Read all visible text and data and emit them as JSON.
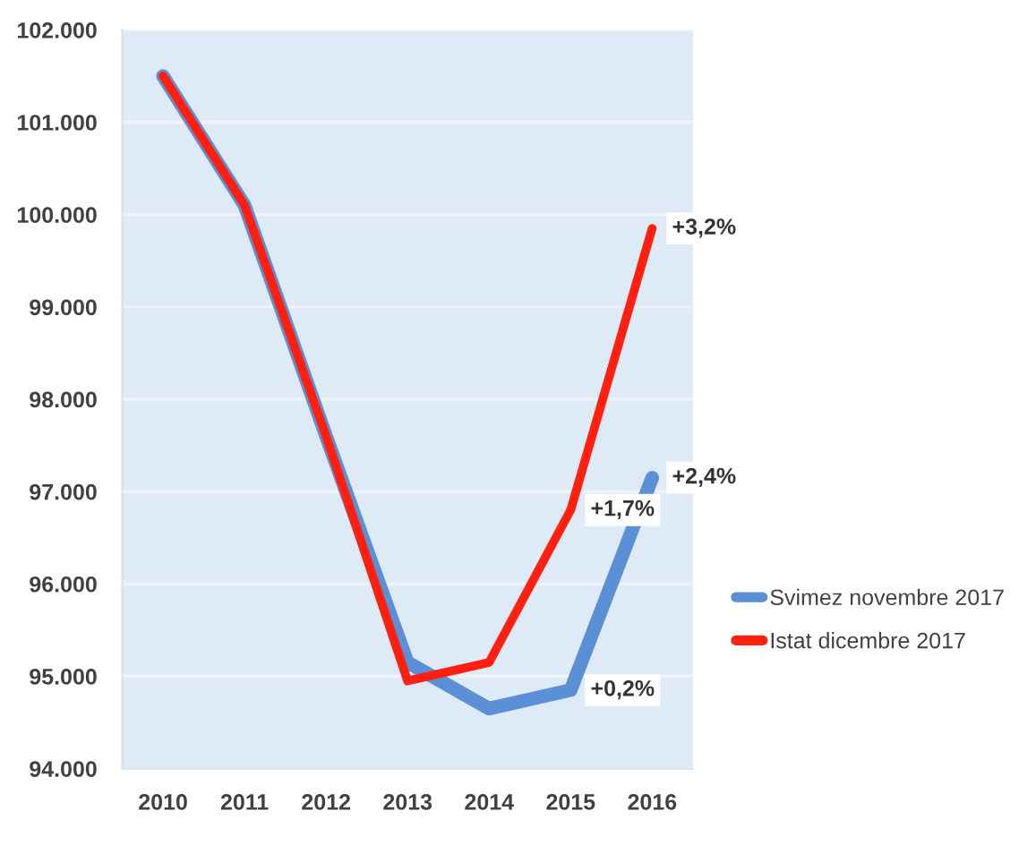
{
  "chart_data": {
    "type": "line",
    "categories": [
      "2010",
      "2011",
      "2012",
      "2013",
      "2014",
      "2015",
      "2016"
    ],
    "series": [
      {
        "name": "Svimez novembre 2017",
        "color": "#5b8fd6",
        "values": [
          101500,
          100100,
          97600,
          95150,
          94650,
          94850,
          97150
        ]
      },
      {
        "name": "Istat dicembre 2017",
        "color": "#ff2010",
        "values": [
          101500,
          100100,
          97600,
          94950,
          95150,
          96800,
          99850
        ]
      }
    ],
    "ylim": [
      94000,
      102000
    ],
    "yticks": [
      {
        "value": 94000,
        "label": "94.000"
      },
      {
        "value": 95000,
        "label": "95.000"
      },
      {
        "value": 96000,
        "label": "96.000"
      },
      {
        "value": 97000,
        "label": "97.000"
      },
      {
        "value": 98000,
        "label": "98.000"
      },
      {
        "value": 99000,
        "label": "99.000"
      },
      {
        "value": 100000,
        "label": "100.000"
      },
      {
        "value": 101000,
        "label": "101.000"
      },
      {
        "value": 102000,
        "label": "102.000"
      }
    ],
    "annotations": [
      {
        "text": "+3,2%",
        "x": "2016",
        "y": 99850
      },
      {
        "text": "+2,4%",
        "x": "2016",
        "y": 97150
      },
      {
        "text": "+1,7%",
        "x": "2015",
        "y": 96800
      },
      {
        "text": "+0,2%",
        "x": "2015",
        "y": 94850
      }
    ],
    "grid": "y",
    "legend": "right",
    "marker": "none",
    "line_style": "solid"
  }
}
